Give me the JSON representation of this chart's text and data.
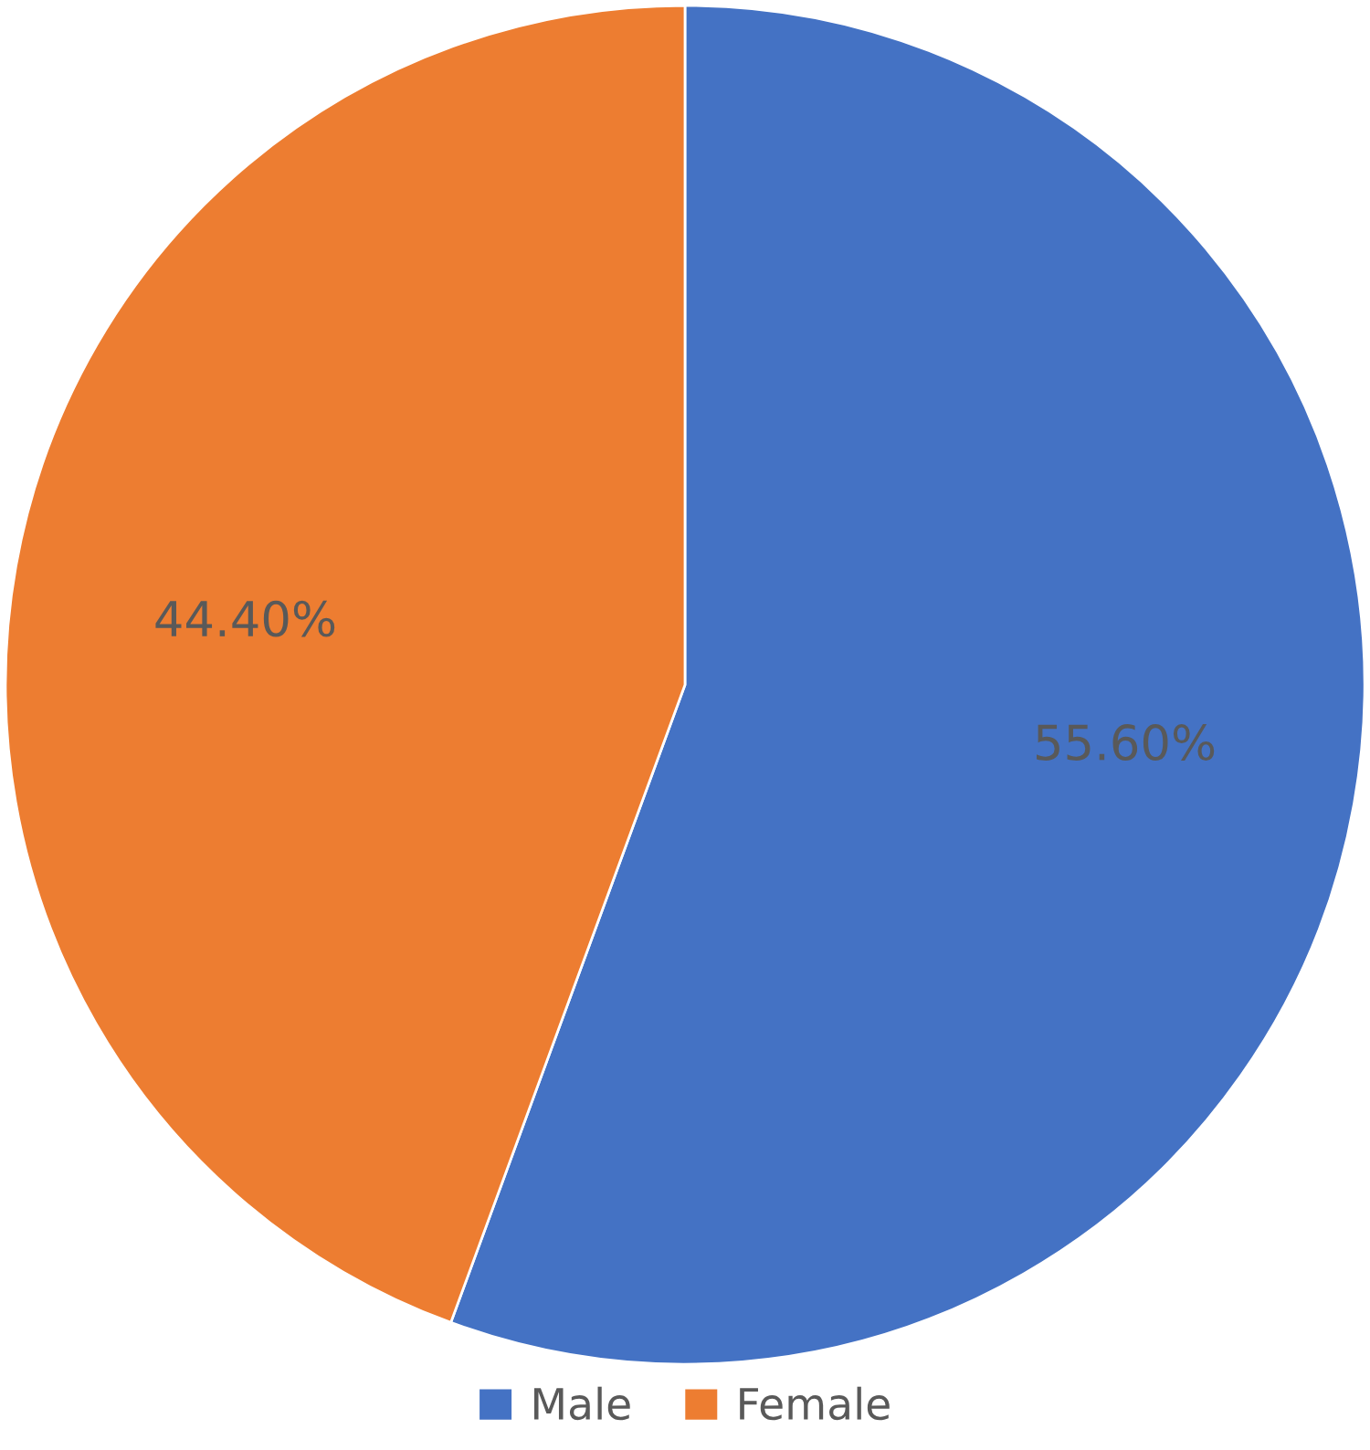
{
  "chart_data": {
    "type": "pie",
    "categories": [
      "Male",
      "Female"
    ],
    "values": [
      55.6,
      44.4
    ],
    "colors": [
      "#4472c4",
      "#ed7d31"
    ],
    "value_labels": [
      "55.60%",
      "44.40%"
    ],
    "legend": "bottom"
  }
}
